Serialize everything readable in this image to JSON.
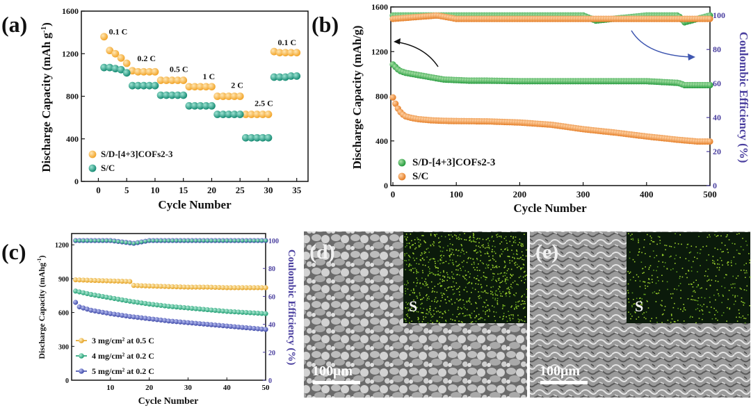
{
  "colors": {
    "orange": "#F7B03A",
    "teal": "#1FA98E",
    "green": "#2EA84A",
    "orange2": "#EF8E3A",
    "purple_axis": "#4A3F9F",
    "blue_dots": "#4E5BC5",
    "green_c": "#2EB38A",
    "yellow_c": "#F4B63B",
    "sem_gray": "#888888",
    "eds_bg": "#0b1a0b",
    "eds_dot": "#9ed22d"
  },
  "chart_data": [
    {
      "panel": "(a)",
      "type": "scatter",
      "xlabel": "Cycle Number",
      "ylabel": "Discharge Capacity (mAh g",
      "ylabel_sup": "-1",
      "ylabel_close": ")",
      "xlim": [
        -3,
        37
      ],
      "ylim": [
        0,
        1600
      ],
      "xticks": [
        "0",
        "5",
        "10",
        "15",
        "20",
        "25",
        "30",
        "35"
      ],
      "yticks": [
        "0",
        "400",
        "800",
        "1200",
        "1600"
      ],
      "rate_labels": [
        "0.1 C",
        "0.2 C",
        "0.5 C",
        "1 C",
        "2 C",
        "2.5 C",
        "0.1 C"
      ],
      "legend": [
        "S/D-[4+3]COFs2-3",
        "S/C"
      ],
      "series": [
        {
          "name": "S/D-[4+3]COFs2-3",
          "x": [
            1,
            2,
            3,
            4,
            5,
            6,
            7,
            8,
            9,
            10,
            11,
            12,
            13,
            14,
            15,
            16,
            17,
            18,
            19,
            20,
            21,
            22,
            23,
            24,
            25,
            26,
            27,
            28,
            29,
            30,
            31,
            32,
            33,
            34,
            35
          ],
          "values": [
            1360,
            1230,
            1200,
            1160,
            1110,
            1040,
            1030,
            1030,
            1030,
            1030,
            950,
            950,
            950,
            950,
            950,
            890,
            890,
            890,
            890,
            890,
            800,
            800,
            800,
            800,
            800,
            630,
            630,
            630,
            630,
            630,
            1220,
            1210,
            1210,
            1210,
            1210
          ]
        },
        {
          "name": "S/C",
          "x": [
            1,
            2,
            3,
            4,
            5,
            6,
            7,
            8,
            9,
            10,
            11,
            12,
            13,
            14,
            15,
            16,
            17,
            18,
            19,
            20,
            21,
            22,
            23,
            24,
            25,
            26,
            27,
            28,
            29,
            30,
            31,
            32,
            33,
            34,
            35
          ],
          "values": [
            1070,
            1070,
            1060,
            1050,
            1020,
            900,
            900,
            900,
            900,
            900,
            810,
            810,
            810,
            810,
            810,
            710,
            710,
            710,
            710,
            710,
            630,
            630,
            630,
            630,
            630,
            410,
            410,
            410,
            410,
            410,
            980,
            980,
            980,
            990,
            990
          ]
        }
      ]
    },
    {
      "panel": "(b)",
      "type": "scatter",
      "xlabel": "Cycle Number",
      "ylabel": "Discharge Capacity (mAh/g)",
      "y2label": "Coulombic Efficiency (%)",
      "xlim": [
        0,
        500
      ],
      "ylim": [
        0,
        1600
      ],
      "y2lim": [
        0,
        105
      ],
      "xticks": [
        "0",
        "100",
        "200",
        "300",
        "400",
        "500"
      ],
      "yticks": [
        "0",
        "400",
        "800",
        "1200",
        "1600"
      ],
      "y2ticks": [
        "0",
        "20",
        "40",
        "60",
        "80",
        "100"
      ],
      "legend": [
        "S/D-[4+3]COFs2-3",
        "S/C"
      ],
      "series": [
        {
          "name": "S/D-[4+3]COFs2-3",
          "x": [
            0,
            10,
            20,
            30,
            40,
            50,
            60,
            70,
            80,
            100,
            120,
            150,
            200,
            250,
            300,
            350,
            400,
            450,
            460,
            480,
            500
          ],
          "values": [
            1085,
            1030,
            1010,
            1000,
            990,
            980,
            970,
            960,
            950,
            945,
            940,
            940,
            935,
            935,
            935,
            935,
            935,
            920,
            900,
            900,
            900
          ]
        },
        {
          "name": "S/C",
          "x": [
            0,
            5,
            10,
            15,
            20,
            30,
            40,
            50,
            60,
            80,
            100,
            150,
            200,
            250,
            300,
            350,
            400,
            450,
            480,
            500
          ],
          "values": [
            790,
            720,
            670,
            640,
            620,
            605,
            595,
            590,
            585,
            580,
            578,
            575,
            565,
            545,
            505,
            475,
            440,
            410,
            395,
            395
          ]
        },
        {
          "name": "CE S/D-[4+3]COFs2-3",
          "x": [
            0,
            100,
            200,
            300,
            320,
            400,
            450,
            460,
            500
          ],
          "values": [
            100,
            100,
            100,
            100,
            97,
            100,
            100,
            96,
            100
          ]
        },
        {
          "name": "CE S/C",
          "x": [
            0,
            70,
            100,
            200,
            300,
            400,
            500
          ],
          "values": [
            98,
            100,
            98,
            98,
            98,
            98,
            98
          ]
        }
      ]
    },
    {
      "panel": "(c)",
      "type": "scatter",
      "xlabel": "Cycle Number",
      "ylabel": "Discharge Capacity (mAhg",
      "ylabel_sup": "-1",
      "ylabel_close": ")",
      "y2label": "Coulombic Efficiency (%)",
      "xlim": [
        0,
        50
      ],
      "ylim": [
        0,
        1300
      ],
      "y2lim": [
        0,
        105
      ],
      "xticks": [
        "10",
        "20",
        "30",
        "40",
        "50"
      ],
      "yticks": [
        "0",
        "300",
        "600",
        "900",
        "1200"
      ],
      "y2ticks": [
        "0",
        "20",
        "40",
        "60",
        "80",
        "100"
      ],
      "legend": [
        "3 mg/cm² at 0.5 C",
        "4 mg/cm²  at 0.2 C",
        "5 mg/cm² at 0.2 C"
      ],
      "series": [
        {
          "name": "3 mg/cm² at 0.5 C",
          "x": [
            1,
            5,
            10,
            15,
            16,
            20,
            25,
            30,
            35,
            40,
            45,
            50
          ],
          "values": [
            890,
            885,
            880,
            875,
            840,
            835,
            830,
            825,
            825,
            820,
            820,
            820
          ]
        },
        {
          "name": "4 mg/cm²  at 0.2 C",
          "x": [
            1,
            5,
            10,
            15,
            20,
            25,
            30,
            35,
            40,
            45,
            50
          ],
          "values": [
            790,
            760,
            730,
            700,
            675,
            655,
            640,
            625,
            610,
            600,
            590
          ]
        },
        {
          "name": "5 mg/cm² at 0.2 C",
          "x": [
            1,
            2,
            5,
            10,
            15,
            20,
            25,
            30,
            35,
            40,
            45,
            50
          ],
          "values": [
            690,
            650,
            620,
            590,
            565,
            545,
            525,
            510,
            495,
            480,
            465,
            450
          ]
        },
        {
          "name": "CE",
          "x": [
            1,
            10,
            16,
            20,
            30,
            40,
            50
          ],
          "values": [
            100,
            100,
            98,
            100,
            100,
            100,
            100
          ]
        }
      ]
    }
  ],
  "images": {
    "d": {
      "panel": "(d)",
      "eds_label": "S",
      "scale_bar": "100μm"
    },
    "e": {
      "panel": "(e)",
      "eds_label": "S",
      "scale_bar": "100μm"
    }
  }
}
